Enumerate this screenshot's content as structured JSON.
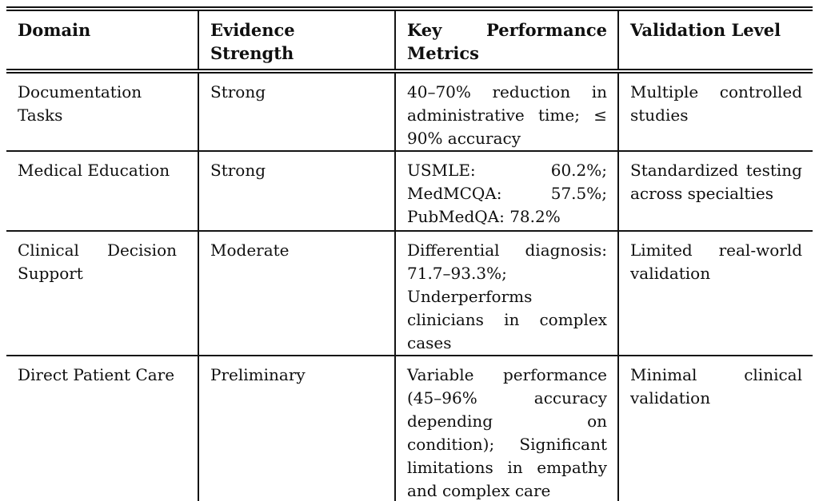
{
  "table": {
    "columns": [
      "Domain",
      "Evidence Strength",
      "Key Performance Metrics",
      "Validation Level"
    ],
    "rows": [
      {
        "domain": "Documentation Tasks",
        "evidence_strength": "Strong",
        "key_performance_metrics": "40–70% reduction in administrative time; ≤ 90% accuracy",
        "validation_level": "Multiple controlled studies"
      },
      {
        "domain": "Medical Education",
        "evidence_strength": "Strong",
        "key_performance_metrics": "USMLE: 60.2%; MedMCQA: 57.5%; PubMedQA: 78.2%",
        "validation_level": "Standardized testing across specialties"
      },
      {
        "domain": "Clinical Decision Support",
        "evidence_strength": "Moderate",
        "key_performance_metrics": "Differential diagnosis: 71.7–93.3%; Underperforms clinicians in complex cases",
        "validation_level": "Limited real-world validation"
      },
      {
        "domain": "Direct Patient Care",
        "evidence_strength": "Preliminary",
        "key_performance_metrics": "Variable performance (45–96% accuracy depending on condition); Significant limitations in empathy and complex care",
        "validation_level": "Minimal clinical validation"
      }
    ]
  },
  "colors": {
    "text": "#0f0f0f",
    "rule": "#141414",
    "background": "#ffffff"
  }
}
